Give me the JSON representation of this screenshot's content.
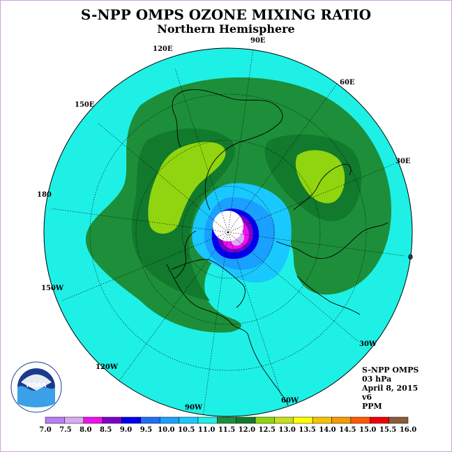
{
  "title": "S-NPP OMPS OZONE MIXING RATIO",
  "subtitle": "Northern Hemisphere",
  "longitude_labels": [
    "90E",
    "60E",
    "30E",
    "0",
    "30W",
    "60W",
    "90W",
    "120W",
    "150W",
    "180",
    "150E",
    "120E"
  ],
  "info": {
    "instrument": "S-NPP OMPS",
    "level": "03 hPa",
    "date": "April 8, 2015",
    "version": "v6",
    "units": "PPM"
  },
  "logo_text": "NOAA",
  "colorbar": {
    "ticks": [
      "7.0",
      "7.5",
      "8.0",
      "8.5",
      "9.0",
      "9.5",
      "10.0",
      "10.5",
      "11.0",
      "11.5",
      "12.0",
      "12.5",
      "13.0",
      "13.5",
      "14.0",
      "14.5",
      "15.0",
      "15.5",
      "16.0"
    ],
    "colors": [
      "#b77ef2",
      "#dbaaf4",
      "#ee10ee",
      "#7d00c8",
      "#0000ee",
      "#1e6ff5",
      "#1aa0ff",
      "#19c8ff",
      "#1ef0e6",
      "#1d8f3a",
      "#117a2c",
      "#90d50f",
      "#c6e01a",
      "#ffff00",
      "#f5c400",
      "#f59a00",
      "#ff5a00",
      "#ee0000",
      "#8a5a3c"
    ]
  },
  "colors": {
    "cyan": "#1ef0e6",
    "mid_green": "#1d8f3a",
    "dark_green": "#117a2c",
    "lime": "#90d50f",
    "light_blue": "#19c8ff",
    "blue": "#1aa0ff",
    "deep_blue": "#0000ee",
    "magenta": "#ee10ee",
    "violet": "#7d00c8",
    "lilac": "#dbaaf4"
  }
}
